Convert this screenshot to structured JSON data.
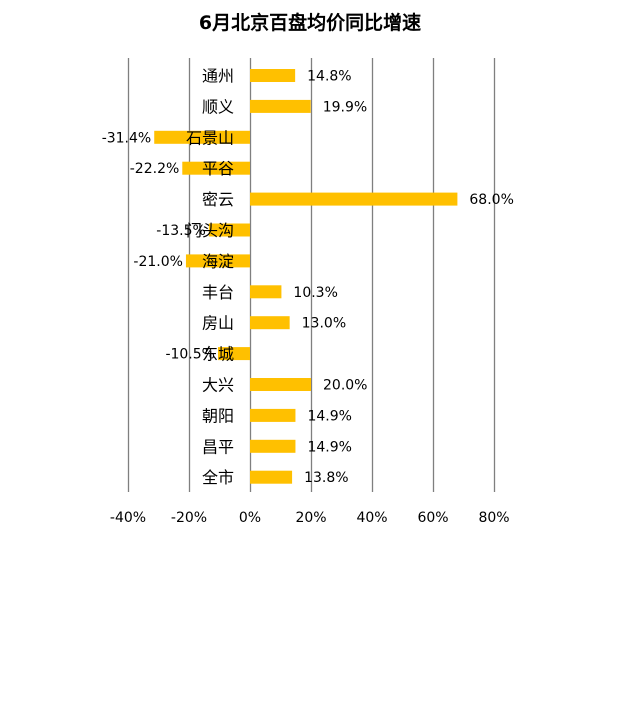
{
  "chart_data": {
    "type": "bar",
    "orientation": "horizontal",
    "title": "6月北京百盘均价同比增速",
    "xlabel": "",
    "ylabel": "",
    "xlim": [
      -40,
      80
    ],
    "xticks": [
      -40,
      -20,
      0,
      20,
      40,
      60,
      80
    ],
    "xtick_labels": [
      "-40%",
      "-20%",
      "0%",
      "20%",
      "40%",
      "60%",
      "80%"
    ],
    "grid": "vertical",
    "legend": "none",
    "bar_color": "#FFC000",
    "categories": [
      "通州",
      "顺义",
      "石景山",
      "平谷",
      "密云",
      "门头沟",
      "海淀",
      "丰台",
      "房山",
      "东城",
      "大兴",
      "朝阳",
      "昌平",
      "全市"
    ],
    "values": [
      14.8,
      19.9,
      -31.4,
      -22.2,
      68.0,
      -13.5,
      -21.0,
      10.3,
      13.0,
      -10.5,
      20.0,
      14.9,
      14.9,
      13.8
    ],
    "value_labels": [
      "14.8%",
      "19.9%",
      "-31.4%",
      "-22.2%",
      "68.0%",
      "-13.5%",
      "-21.0%",
      "10.3%",
      "13.0%",
      "-10.5%",
      "20.0%",
      "14.9%",
      "14.9%",
      "13.8%"
    ]
  }
}
